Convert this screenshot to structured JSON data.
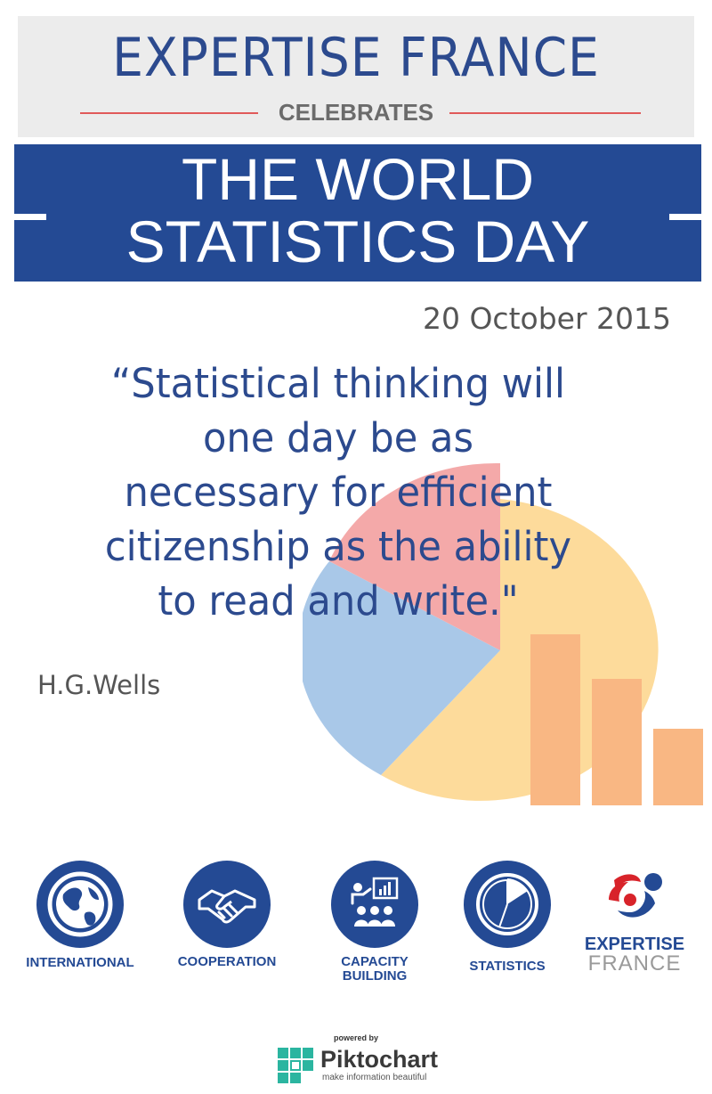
{
  "header": {
    "org_title": "EXPERTISE FRANCE",
    "subtitle": "CELEBRATES",
    "event_line1": "THE WORLD",
    "event_line2": "STATISTICS DAY"
  },
  "date": "20 October 2015",
  "quote": {
    "lines": [
      "“Statistical thinking will",
      "one day be as",
      "necessary for efficient",
      "citizenship as the ability",
      "to read and write.\""
    ],
    "author": "H.G.Wells"
  },
  "icons": [
    {
      "label": "INTERNATIONAL",
      "icon": "globe-icon"
    },
    {
      "label": "COOPERATION",
      "icon": "handshake-icon"
    },
    {
      "label_line1": "CAPACITY",
      "label_line2": "BUILDING",
      "icon": "training-icon"
    },
    {
      "label": "STATISTICS",
      "icon": "pie-chart-icon"
    }
  ],
  "logo": {
    "line1": "EXPERTISE",
    "line2": "FRANCE"
  },
  "footer": {
    "powered_by": "powered by",
    "brand": "Piktochart",
    "tagline": "make information beautiful"
  },
  "colors": {
    "brand_blue": "#244a94",
    "pie_yellow": "#fddb9b",
    "pie_blue": "#a9c8e8",
    "pie_pink": "#f4a9a9",
    "bar_orange": "#f9b783",
    "rule_red": "#e05a5a"
  }
}
